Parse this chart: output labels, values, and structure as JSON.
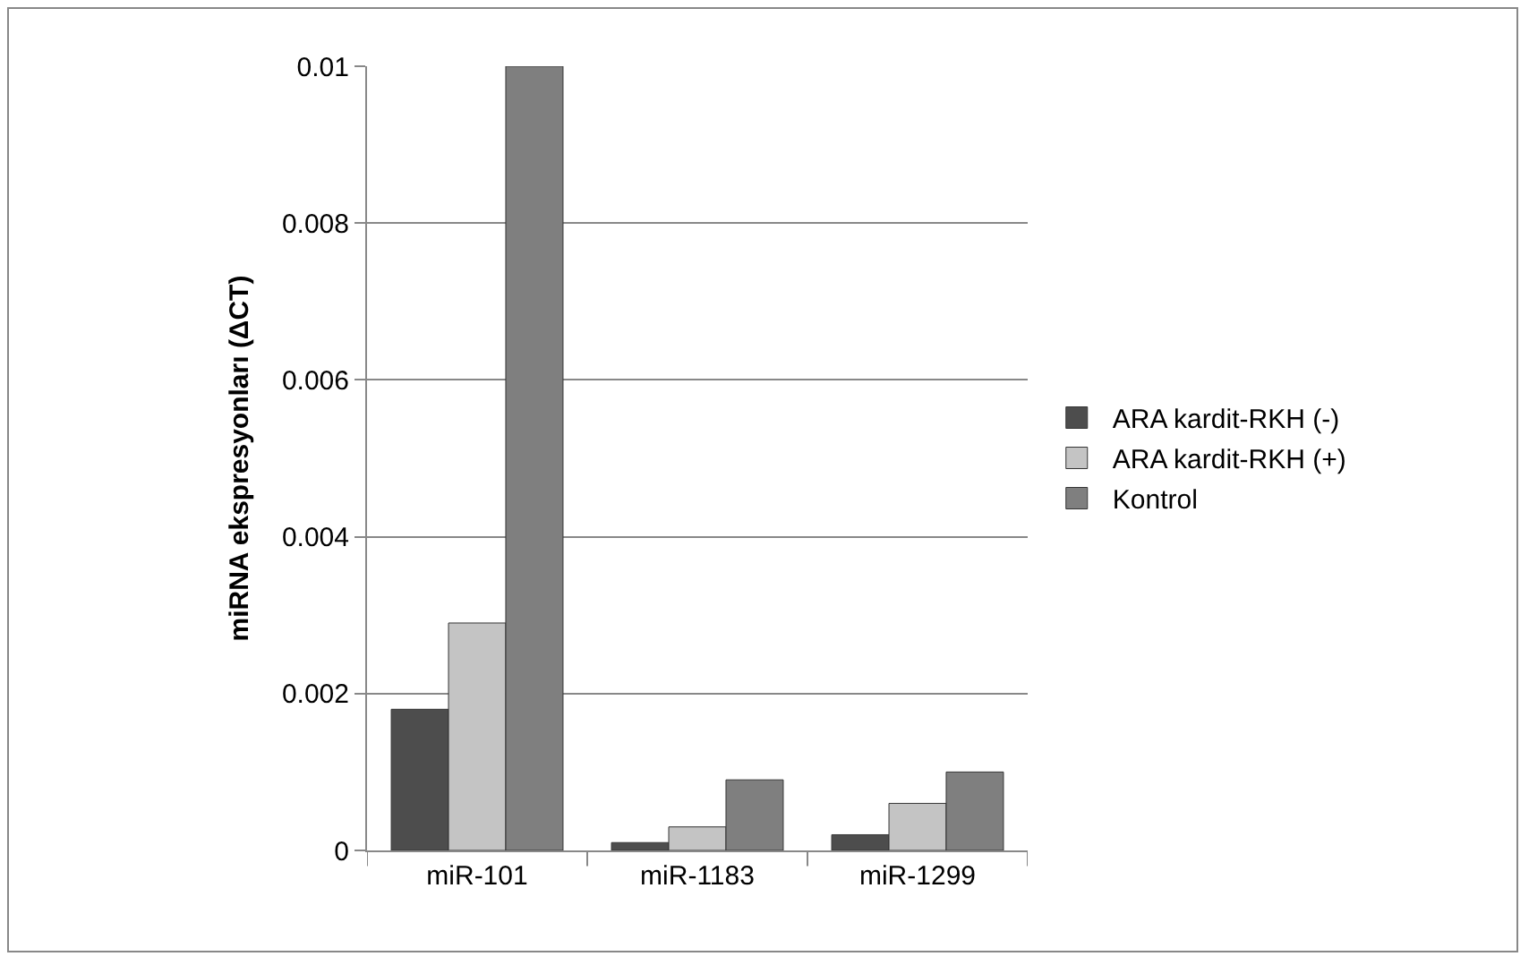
{
  "chart_data": {
    "type": "bar",
    "ylabel": "miRNA ekspresyonları (ΔCT)",
    "categories": [
      "miR-101",
      "miR-1183",
      "miR-1299"
    ],
    "series": [
      {
        "name": "ARA kardit-RKH (-)",
        "color": "#4d4d4d",
        "values": [
          0.0018,
          0.0001,
          0.0002
        ]
      },
      {
        "name": "ARA kardit-RKH (+)",
        "color": "#c4c4c4",
        "values": [
          0.0029,
          0.0003,
          0.0006
        ]
      },
      {
        "name": "Kontrol",
        "color": "#7f7f7f",
        "values": [
          0.01,
          0.0009,
          0.001
        ]
      }
    ],
    "ylim": [
      0,
      0.01
    ],
    "yticks": [
      0,
      0.002,
      0.004,
      0.006,
      0.008,
      0.01
    ],
    "grid": "y",
    "legend": "right"
  }
}
